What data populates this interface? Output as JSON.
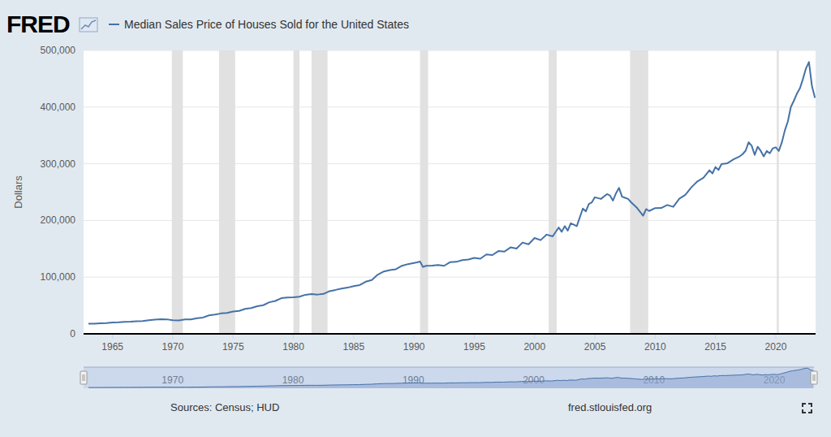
{
  "chart_data": {
    "type": "line",
    "brand": "FRED",
    "y_label": "Dollars",
    "source": "Sources: Census; HUD",
    "url": "fred.stlouisfed.org",
    "x": [
      1963.0,
      1963.5,
      1964.0,
      1964.5,
      1965.0,
      1965.5,
      1966.0,
      1966.5,
      1967.0,
      1967.5,
      1968.0,
      1968.5,
      1969.0,
      1969.5,
      1970.0,
      1970.5,
      1971.0,
      1971.5,
      1972.0,
      1972.5,
      1973.0,
      1973.5,
      1974.0,
      1974.5,
      1975.0,
      1975.5,
      1976.0,
      1976.5,
      1977.0,
      1977.5,
      1978.0,
      1978.5,
      1979.0,
      1979.5,
      1980.0,
      1980.5,
      1981.0,
      1981.5,
      1982.0,
      1982.5,
      1983.0,
      1983.5,
      1984.0,
      1984.5,
      1985.0,
      1985.5,
      1986.0,
      1986.5,
      1987.0,
      1987.5,
      1988.0,
      1988.5,
      1989.0,
      1989.5,
      1990.0,
      1990.25,
      1990.5,
      1990.75,
      1991.0,
      1991.5,
      1992.0,
      1992.5,
      1993.0,
      1993.5,
      1994.0,
      1994.5,
      1995.0,
      1995.5,
      1996.0,
      1996.5,
      1997.0,
      1997.5,
      1998.0,
      1998.5,
      1999.0,
      1999.5,
      2000.0,
      2000.5,
      2001.0,
      2001.5,
      2002.0,
      2002.25,
      2002.5,
      2002.75,
      2003.0,
      2003.5,
      2004.0,
      2004.25,
      2004.5,
      2004.75,
      2005.0,
      2005.5,
      2006.0,
      2006.25,
      2006.5,
      2006.75,
      2007.0,
      2007.25,
      2007.5,
      2007.75,
      2008.0,
      2008.5,
      2009.0,
      2009.25,
      2009.5,
      2010.0,
      2010.5,
      2011.0,
      2011.5,
      2012.0,
      2012.5,
      2013.0,
      2013.5,
      2014.0,
      2014.5,
      2014.75,
      2015.0,
      2015.25,
      2015.5,
      2016.0,
      2016.5,
      2017.0,
      2017.25,
      2017.5,
      2017.75,
      2018.0,
      2018.25,
      2018.5,
      2018.75,
      2019.0,
      2019.25,
      2019.5,
      2019.75,
      2020.0,
      2020.25,
      2020.5,
      2020.75,
      2021.0,
      2021.25,
      2021.5,
      2021.75,
      2022.0,
      2022.25,
      2022.5,
      2022.75,
      2023.0,
      2023.25
    ],
    "series": [
      {
        "name": "Median Sales Price of Houses Sold for the United States",
        "color": "#4572a7",
        "values": [
          17800,
          18000,
          18500,
          19000,
          20000,
          20300,
          21000,
          21500,
          22300,
          22500,
          23900,
          24900,
          25700,
          25600,
          23900,
          23800,
          25300,
          25400,
          27600,
          28800,
          32500,
          34000,
          36000,
          37000,
          39300,
          40500,
          44000,
          45500,
          48800,
          50500,
          55700,
          58000,
          62900,
          64000,
          64600,
          65500,
          68900,
          70200,
          69300,
          70500,
          75300,
          77500,
          80000,
          81500,
          84300,
          86000,
          92000,
          95000,
          104500,
          110000,
          112500,
          114000,
          120000,
          123000,
          125000,
          126000,
          127500,
          118000,
          120000,
          120500,
          121500,
          120000,
          126500,
          127000,
          130000,
          131000,
          133900,
          132500,
          140000,
          139000,
          146000,
          145000,
          152500,
          150500,
          161000,
          158000,
          169000,
          165300,
          175000,
          172000,
          187600,
          180000,
          190000,
          182000,
          195000,
          190000,
          221000,
          216000,
          229000,
          232000,
          240900,
          238000,
          246500,
          244000,
          235000,
          248000,
          257400,
          242000,
          240000,
          238000,
          232100,
          222000,
          208400,
          220000,
          216700,
          221800,
          222000,
          227200,
          224000,
          238400,
          245200,
          258400,
          268900,
          275200,
          288500,
          283000,
          294200,
          289000,
          299500,
          301000,
          307800,
          313000,
          317000,
          323100,
          337900,
          331800,
          315600,
          330000,
          322800,
          313000,
          322500,
          318400,
          327100,
          329000,
          322600,
          337500,
          358700,
          374600,
          400000,
          411200,
          423600,
          433100,
          449300,
          468000,
          479500,
          436800,
          416100
        ]
      }
    ],
    "xlim": [
      1962.6,
      2023.3
    ],
    "ylim": [
      0,
      500000
    ],
    "xticks": [
      1965,
      1970,
      1975,
      1980,
      1985,
      1990,
      1995,
      2000,
      2005,
      2010,
      2015,
      2020
    ],
    "yticks": [
      0,
      {
        "value": 100000,
        "label": "100,000"
      },
      {
        "value": 200000,
        "label": "200,000"
      },
      {
        "value": 300000,
        "label": "300,000"
      },
      {
        "value": 400000,
        "label": "400,000"
      },
      {
        "value": 500000,
        "label": "500,000"
      }
    ],
    "grid": true,
    "recessions": [
      [
        1969.92,
        1970.83
      ],
      [
        1973.83,
        1975.17
      ],
      [
        1980.0,
        1980.5
      ],
      [
        1981.5,
        1982.83
      ],
      [
        1990.5,
        1991.17
      ],
      [
        2001.17,
        2001.83
      ],
      [
        2007.92,
        2009.42
      ],
      [
        2020.08,
        2020.25
      ]
    ],
    "navigator_xticks": [
      1970,
      1980,
      1990,
      2000,
      2010,
      2020
    ]
  }
}
